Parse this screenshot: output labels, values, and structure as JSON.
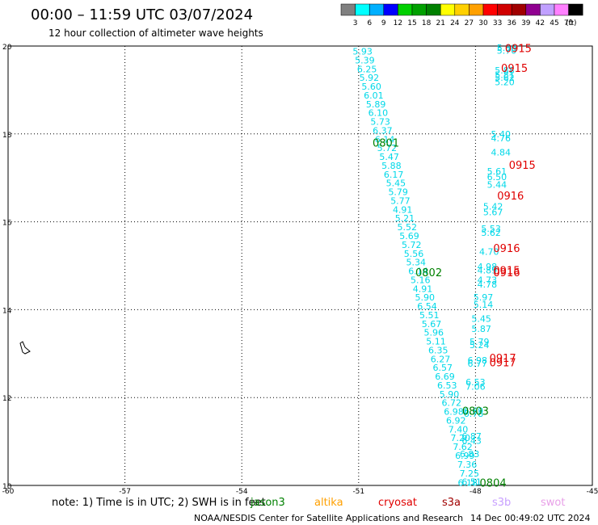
{
  "title": "00:00 – 11:59 UTC 03/07/2024",
  "subtitle": "12 hour collection of altimeter wave heights",
  "color_scale": {
    "labels": [
      "3",
      "6",
      "9",
      "12",
      "15",
      "18",
      "21",
      "24",
      "27",
      "30",
      "33",
      "36",
      "39",
      "42",
      "45",
      "70"
    ],
    "unit": "(ft)",
    "colors": [
      "#808080",
      "#00ffff",
      "#00b0ff",
      "#0000ff",
      "#00d000",
      "#00a000",
      "#008000",
      "#ffff00",
      "#ffd000",
      "#ffa000",
      "#ff0000",
      "#d00000",
      "#a00000",
      "#900090",
      "#c0a0ff",
      "#ff80ff",
      "#000000"
    ]
  },
  "axes": {
    "lon_ticks": [
      "-60",
      "-57",
      "-54",
      "-51",
      "-48",
      "-45"
    ],
    "lat_ticks": [
      "20",
      "18",
      "16",
      "14",
      "12",
      "10"
    ]
  },
  "passes": [
    {
      "label": "0915",
      "color": "#e00000",
      "lon": -46.9,
      "lat": 19.95
    },
    {
      "label": "0915",
      "color": "#e00000",
      "lon": -47.0,
      "lat": 19.5
    },
    {
      "label": "0801",
      "color": "#008000",
      "lon": -50.3,
      "lat": 17.8
    },
    {
      "label": "0915",
      "color": "#e00000",
      "lon": -46.8,
      "lat": 17.3
    },
    {
      "label": "0916",
      "color": "#e00000",
      "lon": -47.1,
      "lat": 16.6
    },
    {
      "label": "0916",
      "color": "#e00000",
      "lon": -47.2,
      "lat": 15.4
    },
    {
      "label": "0802",
      "color": "#008000",
      "lon": -49.2,
      "lat": 14.85
    },
    {
      "label": "0915",
      "color": "#e00000",
      "lon": -47.2,
      "lat": 14.9
    },
    {
      "label": "0916",
      "color": "#e00000",
      "lon": -47.2,
      "lat": 14.85
    },
    {
      "label": "0917",
      "color": "#e00000",
      "lon": -47.3,
      "lat": 12.9
    },
    {
      "label": "0917",
      "color": "#e00000",
      "lon": -47.3,
      "lat": 12.8
    },
    {
      "label": "0803",
      "color": "#008000",
      "lon": -48.0,
      "lat": 11.7
    },
    {
      "label": "0804",
      "color": "#008000",
      "lon": -47.55,
      "lat": 10.06
    }
  ],
  "track1": {
    "values": [
      "5.93",
      "5.39",
      "6.25",
      "5.92",
      "5.60",
      "6.01",
      "5.89",
      "6.10",
      "5.73",
      "6.37",
      "6.14",
      "5.72",
      "5.47",
      "5.88",
      "6.17",
      "5.45",
      "5.79",
      "5.77",
      "4.91",
      "5.21",
      "5.52",
      "5.69",
      "5.72",
      "5.56",
      "5.34",
      "6.14",
      "5.16",
      "4.91",
      "5.90",
      "6.54",
      "5.51",
      "5.67",
      "5.96",
      "5.11",
      "6.35",
      "6.27",
      "6.57",
      "6.69",
      "6.53",
      "5.90",
      "6.72",
      "6.98",
      "6.92",
      "7.40",
      "7.20",
      "7.62",
      "6.99",
      "7.36",
      "7.25",
      "6.51"
    ],
    "start": {
      "lon": -50.9,
      "lat": 19.88
    },
    "end": {
      "lon": -48.1,
      "lat": 10.08
    }
  },
  "track2": {
    "points": [
      {
        "v": "5.80",
        "lon": -47.2,
        "lat": 19.96
      },
      {
        "v": "5.70",
        "lon": -47.2,
        "lat": 19.9
      },
      {
        "v": "5.88",
        "lon": -47.25,
        "lat": 19.45
      },
      {
        "v": "5.81",
        "lon": -47.25,
        "lat": 19.35
      },
      {
        "v": "5.62",
        "lon": -47.25,
        "lat": 19.28
      },
      {
        "v": "5.20",
        "lon": -47.25,
        "lat": 19.18
      },
      {
        "v": "5.40",
        "lon": -47.35,
        "lat": 18.0
      },
      {
        "v": "4.76",
        "lon": -47.35,
        "lat": 17.9
      },
      {
        "v": "4.84",
        "lon": -47.35,
        "lat": 17.58
      },
      {
        "v": "5.61",
        "lon": -47.45,
        "lat": 17.15
      },
      {
        "v": "6.50",
        "lon": -47.45,
        "lat": 17.02
      },
      {
        "v": "5.44",
        "lon": -47.45,
        "lat": 16.85
      },
      {
        "v": "5.42",
        "lon": -47.55,
        "lat": 16.35
      },
      {
        "v": "5.67",
        "lon": -47.55,
        "lat": 16.22
      },
      {
        "v": "5.53",
        "lon": -47.6,
        "lat": 15.85
      },
      {
        "v": "5.62",
        "lon": -47.6,
        "lat": 15.75
      },
      {
        "v": "4.70",
        "lon": -47.65,
        "lat": 15.32
      },
      {
        "v": "4.98",
        "lon": -47.7,
        "lat": 14.98
      },
      {
        "v": "4.89",
        "lon": -47.7,
        "lat": 14.9
      },
      {
        "v": "4.73",
        "lon": -47.7,
        "lat": 14.68
      },
      {
        "v": "4.78",
        "lon": -47.7,
        "lat": 14.58
      },
      {
        "v": "5.97",
        "lon": -47.8,
        "lat": 14.28
      },
      {
        "v": "5.14",
        "lon": -47.8,
        "lat": 14.12
      },
      {
        "v": "5.45",
        "lon": -47.85,
        "lat": 13.8
      },
      {
        "v": "5.87",
        "lon": -47.85,
        "lat": 13.57
      },
      {
        "v": "5.79",
        "lon": -47.9,
        "lat": 13.27
      },
      {
        "v": "5.24",
        "lon": -47.9,
        "lat": 13.2
      },
      {
        "v": "6.98",
        "lon": -47.95,
        "lat": 12.85
      },
      {
        "v": "6.77",
        "lon": -47.95,
        "lat": 12.78
      },
      {
        "v": "6.53",
        "lon": -48.0,
        "lat": 12.35
      },
      {
        "v": "7.06",
        "lon": -48.0,
        "lat": 12.25
      },
      {
        "v": "6.69",
        "lon": -48.05,
        "lat": 11.7
      },
      {
        "v": "6.78",
        "lon": -48.05,
        "lat": 11.64
      },
      {
        "v": "6.87",
        "lon": -48.1,
        "lat": 11.12
      },
      {
        "v": "6.43",
        "lon": -48.1,
        "lat": 11.02
      },
      {
        "v": "6.83",
        "lon": -48.15,
        "lat": 10.72
      },
      {
        "v": "6.18",
        "lon": -48.2,
        "lat": 10.06
      }
    ]
  },
  "note": {
    "prefix": "note:  1) Time is in UTC; 2) SWH is in feet",
    "missions": [
      {
        "name": "jason3",
        "color": "#008000"
      },
      {
        "name": "altika",
        "color": "#ffa000"
      },
      {
        "name": "cryosat",
        "color": "#e00000"
      },
      {
        "name": "s3a",
        "color": "#a00000"
      },
      {
        "name": "s3b",
        "color": "#c8a0ff"
      },
      {
        "name": "swot",
        "color": "#e8a0e8"
      }
    ]
  },
  "credit": "NOAA/NESDIS Center for Satellite Applications and Research",
  "timestamp": "14 Dec 00:49:02 UTC 2024"
}
